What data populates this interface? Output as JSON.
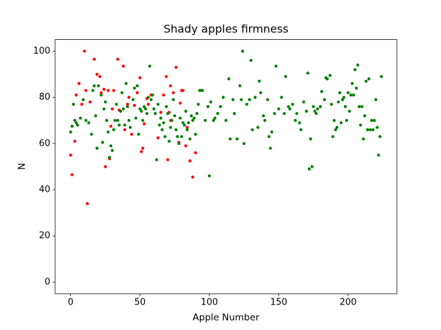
{
  "chart_data": {
    "type": "scatter",
    "title": "Shady apples firmness",
    "x_label": "Apple Number",
    "y_label": "N",
    "xlim": [
      -11.2,
      235.2
    ],
    "ylim": [
      -5,
      105
    ],
    "xticks": [
      0,
      50,
      100,
      150,
      200
    ],
    "yticks": [
      0,
      20,
      40,
      60,
      80,
      100
    ],
    "series": [
      {
        "color": "red",
        "x": [
          0,
          1,
          2,
          3,
          4,
          6,
          8,
          10,
          11,
          12,
          14,
          17,
          19,
          21,
          22,
          24,
          25,
          27,
          28,
          29,
          30,
          31,
          34,
          35,
          38,
          39,
          41,
          42,
          44,
          46,
          48,
          50,
          51,
          52,
          53,
          55,
          56,
          58,
          63,
          65,
          67,
          69,
          70,
          71,
          72,
          72,
          74,
          76,
          78,
          79,
          80,
          81,
          83,
          84,
          86,
          88,
          90
        ],
        "values": [
          55,
          46.5,
          77,
          61,
          81,
          86,
          77,
          100,
          83,
          34,
          78,
          96.5,
          90,
          89,
          82,
          83.5,
          50,
          83,
          53.5,
          67.5,
          75,
          83,
          96.5,
          74.5,
          93.5,
          66,
          77,
          80,
          64,
          76.5,
          82,
          88.5,
          56.5,
          58,
          68.5,
          79.5,
          77,
          81,
          62.5,
          73.5,
          81,
          89,
          53,
          73.5,
          70,
          85,
          82,
          93,
          60.5,
          77.5,
          83,
          83,
          59,
          67,
          52.5,
          45.5,
          56
        ]
      },
      {
        "color": "green",
        "x": [
          0,
          1,
          2,
          3,
          4,
          5,
          7,
          9,
          11,
          13,
          15,
          16,
          17,
          18,
          19,
          20,
          22,
          23,
          24,
          25,
          26,
          27,
          28,
          29,
          30,
          31,
          32,
          33,
          34,
          35,
          36,
          37,
          38,
          39,
          40,
          41,
          42,
          43,
          45,
          46,
          47,
          48,
          49,
          50,
          51,
          52,
          53,
          54,
          55,
          56,
          57,
          58,
          59,
          60,
          61,
          62,
          63,
          64,
          65,
          66,
          67,
          68,
          69,
          70,
          71,
          72,
          73,
          74,
          75,
          76,
          77,
          78,
          79,
          80,
          81,
          82,
          83,
          84,
          85,
          86,
          87,
          88,
          89,
          90,
          91,
          92,
          93,
          94,
          95,
          97,
          99,
          100,
          101,
          103,
          104,
          106,
          108,
          110,
          112,
          114,
          115,
          117,
          118,
          120,
          122,
          123,
          124,
          125,
          127,
          129,
          130,
          131,
          133,
          135,
          136,
          137,
          139,
          140,
          142,
          143,
          144,
          145,
          147,
          148,
          150,
          152,
          154,
          155,
          157,
          158,
          160,
          162,
          163,
          165,
          166,
          168,
          170,
          171,
          172,
          173,
          174,
          175,
          176,
          177,
          178,
          180,
          181,
          183,
          184,
          185,
          187,
          188,
          189,
          190,
          191,
          192,
          193,
          194,
          195,
          196,
          197,
          198,
          199,
          200,
          201,
          202,
          203,
          204,
          205,
          206,
          207,
          208,
          209,
          210,
          211,
          212,
          213,
          214,
          215,
          216,
          217,
          218,
          219,
          220,
          221,
          222,
          223,
          224
        ],
        "values": [
          65,
          67.5,
          77,
          70,
          69,
          68,
          71,
          79,
          70,
          69,
          64,
          83,
          85,
          72,
          58,
          85,
          81,
          60.5,
          75,
          78,
          70,
          65,
          54,
          59,
          57,
          66,
          70,
          77,
          70,
          68,
          74,
          82,
          75,
          68,
          86,
          76,
          70,
          67,
          79,
          84,
          71,
          85,
          64,
          75,
          74,
          70,
          76,
          75,
          73,
          80,
          93.5,
          79,
          81,
          75,
          73,
          53,
          77,
          68,
          71,
          66,
          69,
          63,
          76,
          73,
          61,
          67,
          70,
          79,
          72,
          66,
          63,
          60,
          71,
          63,
          69,
          68,
          74,
          66,
          69,
          62,
          72,
          70,
          71,
          64,
          73,
          77,
          83,
          83,
          83,
          70,
          76,
          46,
          78,
          70,
          71,
          73,
          76,
          80,
          70,
          88,
          62,
          79,
          73,
          62,
          85,
          79,
          100,
          60,
          77,
          79,
          96,
          66,
          80,
          67,
          87,
          82,
          72,
          70,
          79,
          63,
          58,
          65,
          73,
          93.5,
          75,
          80,
          73,
          89,
          76,
          75,
          77,
          70,
          73,
          69,
          66,
          78,
          74,
          90.5,
          49,
          62,
          50,
          76,
          74,
          73,
          75,
          76,
          82.5,
          79,
          88.5,
          88,
          89.5,
          77,
          63,
          70,
          66,
          67,
          78,
          82,
          69,
          79,
          80,
          76,
          70,
          82,
          74,
          81,
          86,
          81,
          92,
          84,
          94,
          76,
          68,
          76,
          62,
          72,
          87,
          66,
          88,
          66,
          70,
          66,
          70,
          79,
          67,
          55,
          63,
          89
        ]
      }
    ]
  }
}
